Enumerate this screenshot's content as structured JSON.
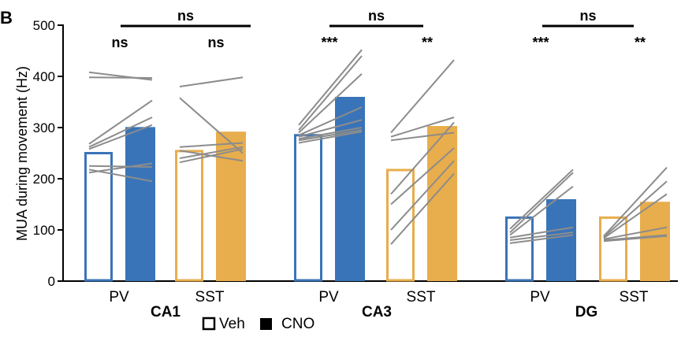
{
  "panel_label": "B",
  "legend": [
    {
      "label": "Veh",
      "style": "open"
    },
    {
      "label": "CNO",
      "style": "filled"
    }
  ],
  "colors": {
    "PV": "#3a74b8",
    "SST": "#e8ad4c",
    "lines": "#8c8c8c",
    "axis": "#000000"
  },
  "chart_data": {
    "type": "bar",
    "ylabel": "MUA during movement (Hz)",
    "ylim": [
      0,
      500
    ],
    "yticks": [
      0,
      100,
      200,
      300,
      400,
      500
    ],
    "grid": false,
    "legend_position": "bottom",
    "regions": [
      {
        "name": "CA1",
        "comparison": "ns",
        "groups": [
          {
            "name": "PV",
            "veh": 250,
            "cno": 301,
            "sig": "ns",
            "pairs": [
              [
                408,
                393
              ],
              [
                398,
                397
              ],
              [
                268,
                353
              ],
              [
                262,
                320
              ],
              [
                258,
                305
              ],
              [
                225,
                223
              ],
              [
                218,
                195
              ],
              [
                212,
                230
              ]
            ]
          },
          {
            "name": "SST",
            "veh": 254,
            "cno": 292,
            "sig": "ns",
            "pairs": [
              [
                380,
                398
              ],
              [
                358,
                250
              ],
              [
                262,
                270
              ],
              [
                255,
                235
              ],
              [
                240,
                262
              ],
              [
                232,
                258
              ]
            ]
          }
        ]
      },
      {
        "name": "CA3",
        "comparison": "ns",
        "groups": [
          {
            "name": "PV",
            "veh": 285,
            "cno": 360,
            "sig": "***",
            "pairs": [
              [
                305,
                452
              ],
              [
                295,
                440
              ],
              [
                290,
                405
              ],
              [
                285,
                340
              ],
              [
                282,
                315
              ],
              [
                278,
                300
              ],
              [
                275,
                295
              ],
              [
                270,
                292
              ]
            ]
          },
          {
            "name": "SST",
            "veh": 217,
            "cno": 303,
            "sig": "**",
            "pairs": [
              [
                290,
                432
              ],
              [
                282,
                320
              ],
              [
                275,
                290
              ],
              [
                170,
                310
              ],
              [
                150,
                260
              ],
              [
                100,
                235
              ],
              [
                72,
                210
              ]
            ]
          }
        ]
      },
      {
        "name": "DG",
        "comparison": "ns",
        "groups": [
          {
            "name": "PV",
            "veh": 124,
            "cno": 160,
            "sig": "***",
            "pairs": [
              [
                102,
                218
              ],
              [
                95,
                212
              ],
              [
                90,
                185
              ],
              [
                85,
                105
              ],
              [
                80,
                95
              ],
              [
                74,
                90
              ]
            ]
          },
          {
            "name": "SST",
            "veh": 124,
            "cno": 155,
            "sig": "**",
            "pairs": [
              [
                88,
                222
              ],
              [
                86,
                195
              ],
              [
                84,
                170
              ],
              [
                82,
                105
              ],
              [
                80,
                90
              ],
              [
                78,
                88
              ]
            ]
          }
        ]
      }
    ]
  }
}
